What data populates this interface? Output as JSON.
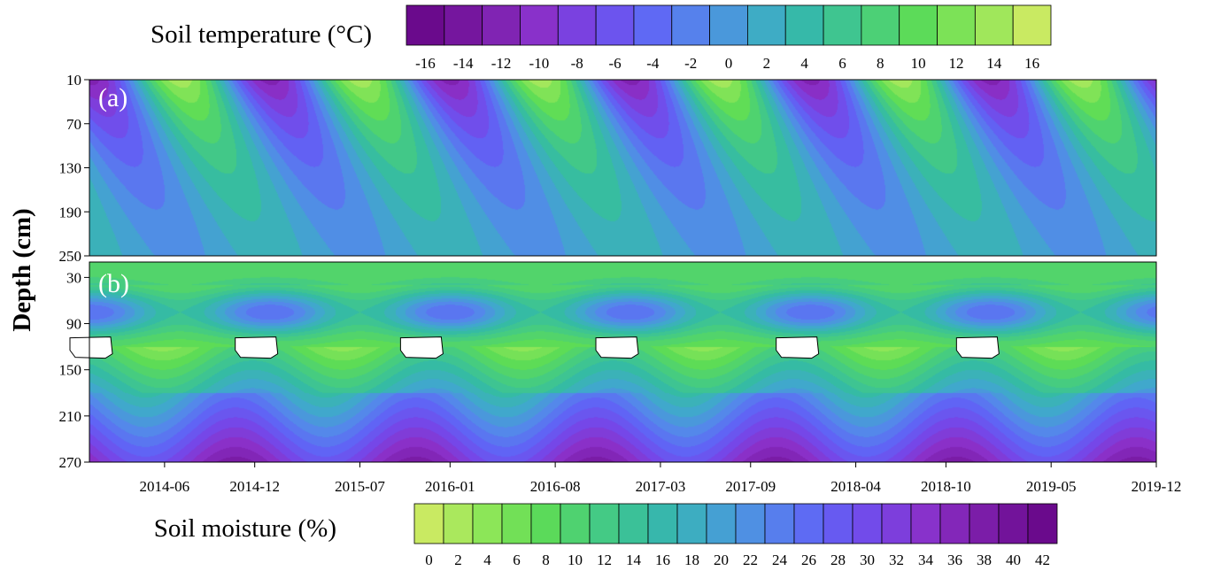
{
  "chart_data": [
    {
      "type": "heatmap",
      "panel_label": "(a)",
      "colorbar_title": "Soil temperature (°C)",
      "colorbar_ticks": [
        -16,
        -14,
        -12,
        -10,
        -8,
        -6,
        -4,
        -2,
        0,
        2,
        4,
        6,
        8,
        10,
        12,
        14,
        16
      ],
      "colorbar_range": [
        -17,
        17
      ],
      "colorbar_step": 2,
      "y_ticks": [
        10,
        70,
        130,
        190,
        250
      ],
      "ylim": [
        10,
        250
      ],
      "time_range": [
        "2014-01",
        "2019-12"
      ],
      "seasonal_pattern": {
        "period_months": 12,
        "coldest_month_near_surface": 1,
        "surface_amplitude": 14,
        "deep_mean": 0,
        "damping_depth_cm": 120,
        "phase_lag": "increasing with depth"
      }
    },
    {
      "type": "heatmap",
      "panel_label": "(b)",
      "colorbar_title": "Soil moisture (%)",
      "colorbar_ticks": [
        0,
        2,
        4,
        6,
        8,
        10,
        12,
        14,
        16,
        18,
        20,
        22,
        24,
        26,
        28,
        30,
        32,
        34,
        36,
        38,
        40,
        42
      ],
      "colorbar_range": [
        -1,
        43
      ],
      "colorbar_step": 2,
      "y_ticks": [
        30,
        90,
        150,
        210,
        270
      ],
      "ylim": [
        10,
        270
      ],
      "x_ticks": [
        "2014-06",
        "2014-12",
        "2015-07",
        "2016-01",
        "2016-08",
        "2017-03",
        "2017-09",
        "2018-04",
        "2018-10",
        "2019-05",
        "2019-12"
      ],
      "time_range": [
        "2014-01",
        "2019-12"
      ],
      "missing_value_patches": [
        "2014-01",
        "2014-12",
        "2015-11",
        "2016-12",
        "2017-12",
        "2018-12"
      ],
      "missing_depth_cm": 120
    }
  ],
  "shared_y_label": "Depth (cm)",
  "colors": {
    "temperature_colormap": [
      "#6a0a8c",
      "#7a1ca6",
      "#8a30c8",
      "#7547e8",
      "#6064f5",
      "#5488ea",
      "#40a8cc",
      "#35bba4",
      "#46cc80",
      "#5ddc56",
      "#8ee658",
      "#c9ea62"
    ],
    "moisture_colormap": [
      "#c9ea62",
      "#8ee658",
      "#5ddc56",
      "#46cc80",
      "#35bba4",
      "#40a8cc",
      "#5488ea",
      "#6064f5",
      "#7547e8",
      "#8a30c8",
      "#7a1ca6",
      "#6a0a8c"
    ],
    "contour_major": "#1a1a1a",
    "contour_minor": "#bfbfbf",
    "missing": "#ffffff"
  }
}
